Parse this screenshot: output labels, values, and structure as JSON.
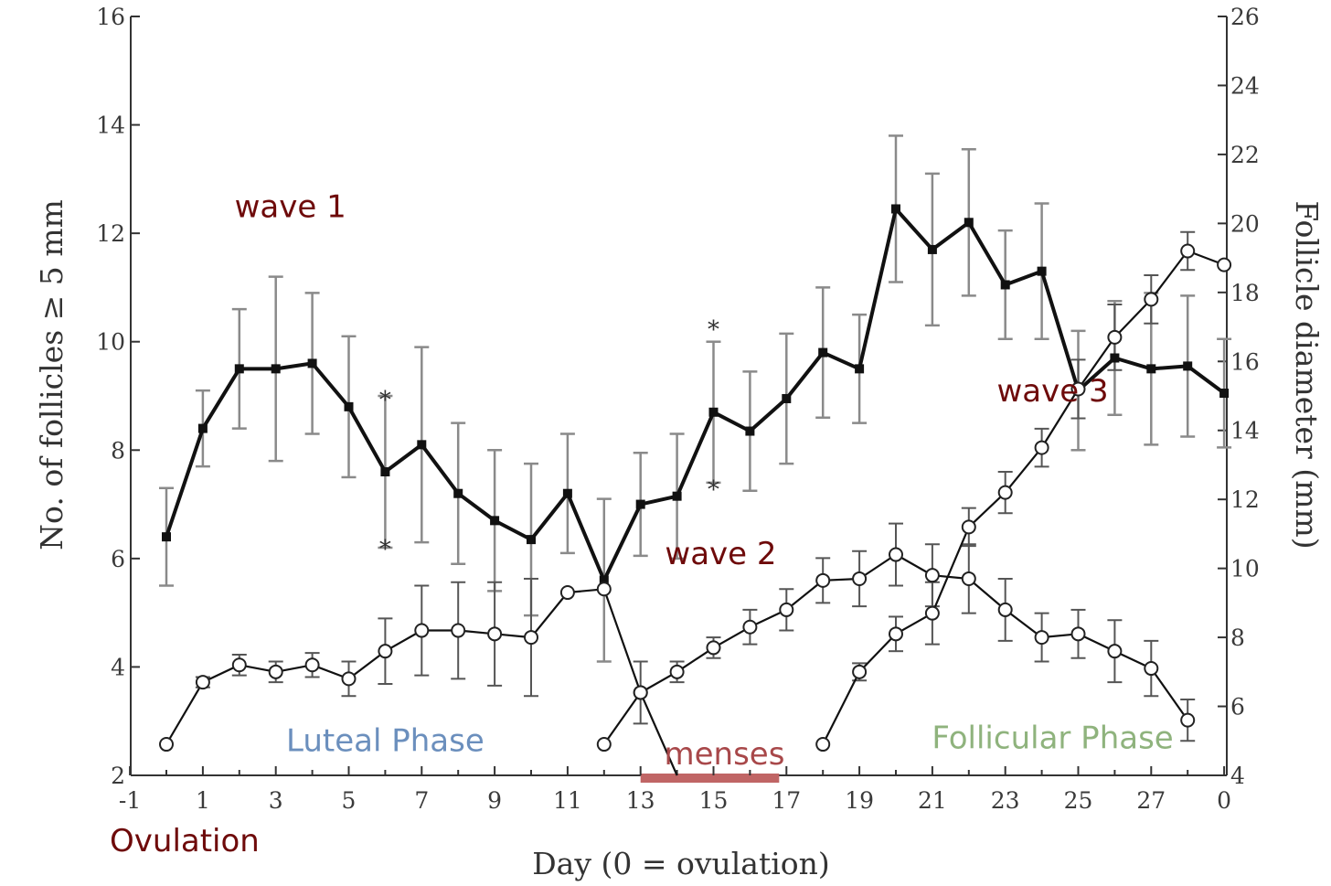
{
  "chart_data": {
    "type": "line",
    "title": "",
    "xlabel": "Day (0 = ovulation)",
    "ylabel_left": "No. of follicles ≥ 5 mm",
    "ylabel_right": "Follicle diameter (mm)",
    "x_tick_labels": [
      "-1",
      "1",
      "3",
      "5",
      "7",
      "9",
      "11",
      "13",
      "15",
      "17",
      "19",
      "21",
      "23",
      "25",
      "27",
      "0"
    ],
    "ylim_left": [
      2,
      16
    ],
    "y_ticks_left": [
      2,
      4,
      6,
      8,
      10,
      12,
      14,
      16
    ],
    "ylim_right": [
      4,
      26
    ],
    "y_ticks_right": [
      4,
      6,
      8,
      10,
      12,
      14,
      16,
      18,
      20,
      22,
      24,
      26
    ],
    "grid": false,
    "series": [
      {
        "marker": "filled-square",
        "axis": "left",
        "x": [
          0,
          1,
          2,
          3,
          4,
          5,
          6,
          7,
          8,
          9,
          10,
          11,
          12,
          13,
          14,
          15,
          16,
          17,
          18,
          19,
          20,
          21,
          22,
          23,
          24,
          25,
          26,
          27,
          28,
          29
        ],
        "y": [
          6.4,
          8.4,
          9.5,
          9.5,
          9.6,
          8.8,
          7.6,
          8.1,
          7.2,
          6.7,
          6.35,
          7.2,
          5.6,
          7.0,
          7.15,
          8.7,
          8.35,
          8.95,
          9.8,
          9.5,
          12.45,
          11.7,
          12.2,
          11.05,
          11.3,
          9.1,
          9.7,
          9.5,
          9.55,
          9.05
        ],
        "err": [
          0.9,
          0.7,
          1.1,
          1.7,
          1.3,
          1.3,
          1.4,
          1.8,
          1.3,
          1.3,
          1.4,
          1.1,
          1.5,
          0.95,
          1.15,
          1.3,
          1.1,
          1.2,
          1.2,
          1.0,
          1.35,
          1.4,
          1.35,
          1.0,
          1.25,
          1.1,
          1.05,
          1.4,
          1.3,
          1.0
        ],
        "markers_at": [
          0,
          1,
          2,
          3,
          4,
          5,
          6,
          7,
          8,
          9,
          10,
          11,
          12,
          13,
          14,
          15,
          16,
          17,
          18,
          19,
          20,
          21,
          22,
          23,
          24,
          25,
          26,
          27,
          28,
          29
        ]
      },
      {
        "name": "wave 1",
        "marker": "open-circle",
        "axis": "right",
        "x": [
          0,
          1,
          2,
          3,
          4,
          5,
          6,
          7,
          8,
          9,
          10,
          11,
          12,
          13,
          14
        ],
        "y": [
          4.9,
          6.7,
          7.2,
          7.0,
          7.2,
          6.8,
          7.6,
          8.2,
          8.2,
          8.1,
          8.0,
          9.3,
          9.4,
          6.4,
          4.0
        ],
        "err": [
          0,
          0.15,
          0.3,
          0.3,
          0.35,
          0.5,
          0.95,
          1.3,
          1.4,
          1.5,
          1.7,
          0,
          0,
          0,
          0
        ],
        "markers_at": [
          0,
          1,
          2,
          3,
          4,
          5,
          6,
          7,
          8,
          9,
          10,
          11,
          12,
          13
        ]
      },
      {
        "name": "wave 2",
        "marker": "open-circle",
        "axis": "right",
        "x": [
          12,
          13,
          14,
          15,
          16,
          17,
          18,
          19,
          20,
          21,
          22,
          23,
          24,
          25,
          26,
          27,
          28
        ],
        "y": [
          4.9,
          6.4,
          7.0,
          7.7,
          8.3,
          8.8,
          9.65,
          9.7,
          10.4,
          9.8,
          9.7,
          8.8,
          8.0,
          8.1,
          7.6,
          7.1,
          5.6
        ],
        "err": [
          0,
          0.9,
          0.3,
          0.3,
          0.5,
          0.6,
          0.65,
          0.8,
          0.9,
          0.9,
          1.0,
          0.9,
          0.7,
          0.7,
          0.9,
          0.8,
          0.6
        ],
        "markers_at": [
          12,
          13,
          14,
          15,
          16,
          17,
          18,
          19,
          20,
          21,
          22,
          23,
          24,
          25,
          26,
          27,
          28
        ]
      },
      {
        "name": "wave 3",
        "marker": "open-circle",
        "axis": "right",
        "x": [
          18,
          19,
          20,
          21,
          22,
          23,
          24,
          25,
          26,
          27,
          28,
          29
        ],
        "y": [
          4.9,
          7.0,
          8.1,
          8.7,
          11.2,
          12.2,
          13.5,
          15.2,
          16.7,
          17.8,
          19.2,
          18.8
        ],
        "err": [
          0,
          0.25,
          0.5,
          0.9,
          0.55,
          0.6,
          0.55,
          0.85,
          0.95,
          0.7,
          0.55,
          0
        ],
        "markers_at": [
          18,
          19,
          20,
          21,
          22,
          23,
          24,
          25,
          26,
          27,
          28,
          29
        ]
      }
    ],
    "significance_marks": [
      {
        "x": 6,
        "y_left": 8.95,
        "symbol": "*"
      },
      {
        "x": 6,
        "y_left": 6.2,
        "symbol": "*"
      },
      {
        "x": 15,
        "y_left": 10.25,
        "symbol": "*"
      },
      {
        "x": 15,
        "y_left": 7.3,
        "symbol": "*"
      }
    ],
    "annotations": [
      {
        "text": "wave 1",
        "x": 3.4,
        "y_left": 12.3,
        "color": "#6e0a0a"
      },
      {
        "text": "wave 2",
        "x": 15.2,
        "y_left": 5.9,
        "color": "#6e0a0a"
      },
      {
        "text": "wave 3",
        "x": 24.3,
        "y_left": 8.9,
        "color": "#6e0a0a"
      },
      {
        "text": "Luteal Phase",
        "x": 6.0,
        "y_left": 2.45,
        "color": "#6b8fbd"
      },
      {
        "text": "menses",
        "x": 15.3,
        "y_left": 2.2,
        "color": "#a8484a"
      },
      {
        "text": "Follicular Phase",
        "x": 24.3,
        "y_left": 2.5,
        "color": "#8fb37d"
      },
      {
        "text": "Ovulation",
        "x": 0.5,
        "y_left": 0.6,
        "color": "#6e0a0a"
      }
    ],
    "menses_bar": {
      "x_start": 13.0,
      "x_end": 16.8,
      "color": "#c06565"
    }
  }
}
